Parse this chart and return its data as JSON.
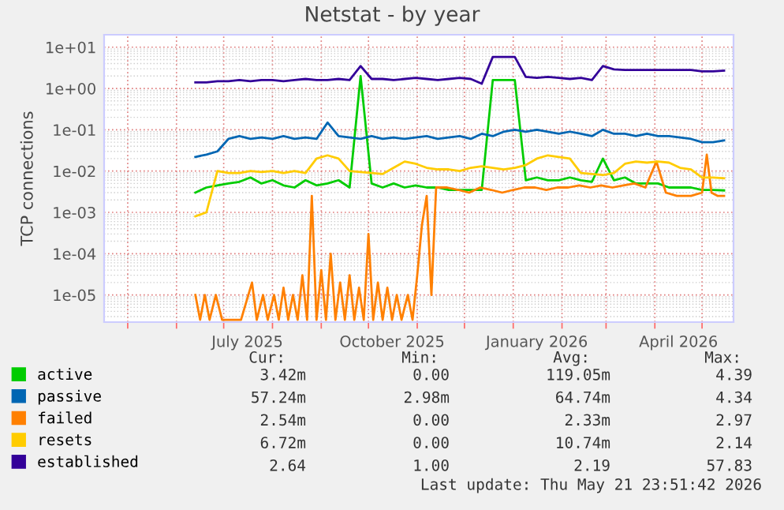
{
  "chart_data": {
    "type": "line",
    "title": "Netstat - by year",
    "ylabel": "TCP connections",
    "log": "y",
    "grid": true,
    "legend": "bottom",
    "xlim": [
      "2025-04-16",
      "2026-05-21"
    ],
    "xticks": [
      {
        "value": "2025-07-16",
        "label": "July 2025"
      },
      {
        "value": "2025-10-16",
        "label": "October 2025"
      },
      {
        "value": "2026-01-16",
        "label": "January 2026"
      },
      {
        "value": "2026-04-16",
        "label": "April 2026"
      }
    ],
    "ylim": [
      2.2e-06,
      20
    ],
    "yticks": [
      {
        "value": 1e-05,
        "label": "1e-05"
      },
      {
        "value": 0.0001,
        "label": "1e-04"
      },
      {
        "value": 0.001,
        "label": "1e-03"
      },
      {
        "value": 0.01,
        "label": "1e-02"
      },
      {
        "value": 0.1,
        "label": "1e-01"
      },
      {
        "value": 1,
        "label": "1e+00"
      },
      {
        "value": 10,
        "label": "1e+01"
      }
    ],
    "x": [
      "2025-06-13",
      "2025-06-20",
      "2025-06-27",
      "2025-07-04",
      "2025-07-11",
      "2025-07-18",
      "2025-07-25",
      "2025-08-01",
      "2025-08-08",
      "2025-08-15",
      "2025-08-22",
      "2025-08-29",
      "2025-09-05",
      "2025-09-12",
      "2025-09-19",
      "2025-09-26",
      "2025-10-03",
      "2025-10-10",
      "2025-10-17",
      "2025-10-24",
      "2025-10-31",
      "2025-11-07",
      "2025-11-14",
      "2025-11-21",
      "2025-11-28",
      "2025-12-05",
      "2025-12-12",
      "2025-12-19",
      "2025-12-26",
      "2026-01-02",
      "2026-01-09",
      "2026-01-16",
      "2026-01-23",
      "2026-01-30",
      "2026-02-06",
      "2026-02-13",
      "2026-02-20",
      "2026-02-27",
      "2026-03-06",
      "2026-03-13",
      "2026-03-20",
      "2026-03-27",
      "2026-04-03",
      "2026-04-10",
      "2026-04-17",
      "2026-04-24",
      "2026-05-01",
      "2026-05-08",
      "2026-05-15"
    ],
    "series": [
      {
        "name": "active",
        "color": "#00cc00",
        "values": [
          0.003,
          0.004,
          0.0045,
          0.005,
          0.0055,
          0.007,
          0.005,
          0.006,
          0.0045,
          0.004,
          0.006,
          0.0045,
          0.005,
          0.006,
          0.004,
          2.0,
          0.005,
          0.004,
          0.005,
          0.004,
          0.0045,
          0.004,
          0.004,
          0.0035,
          0.0035,
          0.0035,
          0.0035,
          1.6,
          1.6,
          1.6,
          0.006,
          0.007,
          0.006,
          0.006,
          0.007,
          0.006,
          0.0055,
          0.02,
          0.006,
          0.007,
          0.005,
          0.005,
          0.005,
          0.004,
          0.004,
          0.004,
          0.0035,
          0.0035,
          0.0034
        ]
      },
      {
        "name": "passive",
        "color": "#0066b3",
        "values": [
          0.022,
          0.025,
          0.03,
          0.06,
          0.07,
          0.06,
          0.065,
          0.06,
          0.07,
          0.06,
          0.065,
          0.06,
          0.15,
          0.07,
          0.065,
          0.06,
          0.07,
          0.06,
          0.065,
          0.06,
          0.065,
          0.07,
          0.06,
          0.065,
          0.07,
          0.06,
          0.08,
          0.07,
          0.09,
          0.1,
          0.09,
          0.1,
          0.09,
          0.08,
          0.09,
          0.08,
          0.07,
          0.1,
          0.08,
          0.08,
          0.07,
          0.08,
          0.07,
          0.07,
          0.065,
          0.06,
          0.05,
          0.05,
          0.055
        ]
      },
      {
        "name": "failed",
        "color": "#ff8000",
        "x": [
          "2025-06-13",
          "2025-06-16",
          "2025-06-19",
          "2025-06-22",
          "2025-06-26",
          "2025-06-30",
          "2025-07-05",
          "2025-07-12",
          "2025-07-19",
          "2025-07-22",
          "2025-07-26",
          "2025-07-29",
          "2025-08-02",
          "2025-08-05",
          "2025-08-08",
          "2025-08-11",
          "2025-08-14",
          "2025-08-17",
          "2025-08-20",
          "2025-08-23",
          "2025-08-26",
          "2025-08-29",
          "2025-09-01",
          "2025-09-04",
          "2025-09-07",
          "2025-09-10",
          "2025-09-13",
          "2025-09-16",
          "2025-09-19",
          "2025-09-22",
          "2025-09-25",
          "2025-09-28",
          "2025-10-01",
          "2025-10-04",
          "2025-10-07",
          "2025-10-10",
          "2025-10-13",
          "2025-10-16",
          "2025-10-19",
          "2025-10-22",
          "2025-10-26",
          "2025-10-29",
          "2025-11-01",
          "2025-11-04",
          "2025-11-07",
          "2025-11-10",
          "2025-11-13",
          "2025-11-20",
          "2025-11-27",
          "2025-12-04",
          "2025-12-11",
          "2025-12-18",
          "2025-12-25",
          "2026-01-01",
          "2026-01-08",
          "2026-01-15",
          "2026-01-22",
          "2026-01-29",
          "2026-02-05",
          "2026-02-12",
          "2026-02-19",
          "2026-02-26",
          "2026-03-05",
          "2026-03-12",
          "2026-03-19",
          "2026-03-26",
          "2026-04-02",
          "2026-04-08",
          "2026-04-15",
          "2026-04-24",
          "2026-05-01",
          "2026-05-04",
          "2026-05-07",
          "2026-05-11",
          "2026-05-15"
        ],
        "values": [
          1e-05,
          2.5e-06,
          1e-05,
          2.5e-06,
          1e-05,
          2.5e-06,
          2.5e-06,
          2.5e-06,
          2e-05,
          2.5e-06,
          1e-05,
          2.5e-06,
          1e-05,
          2.5e-06,
          1.5e-05,
          2.5e-06,
          1e-05,
          2.5e-06,
          3e-05,
          2.5e-06,
          0.0025,
          2.5e-06,
          4e-05,
          2.5e-06,
          0.0001,
          2.5e-06,
          2e-05,
          2.5e-06,
          3e-05,
          2.5e-06,
          1.5e-05,
          2.5e-06,
          0.0003,
          2.5e-06,
          2e-05,
          2.5e-06,
          1.5e-05,
          2.5e-06,
          1e-05,
          2.5e-06,
          1e-05,
          2.5e-06,
          3e-05,
          0.0005,
          0.0025,
          1e-05,
          0.004,
          0.004,
          0.0035,
          0.003,
          0.004,
          0.0035,
          0.003,
          0.0035,
          0.004,
          0.004,
          0.0035,
          0.004,
          0.004,
          0.0045,
          0.004,
          0.0045,
          0.004,
          0.0045,
          0.005,
          0.004,
          0.017,
          0.003,
          0.0025,
          0.0025,
          0.003,
          0.025,
          0.003,
          0.0025,
          0.0025
        ]
      },
      {
        "name": "resets",
        "color": "#ffcc00",
        "values": [
          0.0008,
          0.001,
          0.01,
          0.009,
          0.009,
          0.01,
          0.0095,
          0.01,
          0.009,
          0.01,
          0.009,
          0.02,
          0.024,
          0.02,
          0.01,
          0.0095,
          0.009,
          0.0085,
          0.012,
          0.017,
          0.015,
          0.012,
          0.011,
          0.011,
          0.01,
          0.012,
          0.013,
          0.012,
          0.011,
          0.012,
          0.014,
          0.02,
          0.024,
          0.022,
          0.02,
          0.009,
          0.0085,
          0.008,
          0.009,
          0.015,
          0.017,
          0.016,
          0.017,
          0.016,
          0.012,
          0.011,
          0.007,
          0.007,
          0.0067
        ]
      },
      {
        "name": "established",
        "color": "#330099",
        "values": [
          1.4,
          1.4,
          1.5,
          1.5,
          1.6,
          1.5,
          1.6,
          1.6,
          1.5,
          1.6,
          1.7,
          1.6,
          1.6,
          1.7,
          1.6,
          3.5,
          1.7,
          1.7,
          1.6,
          1.7,
          1.8,
          1.7,
          1.6,
          1.7,
          1.8,
          1.7,
          1.3,
          5.8,
          5.8,
          5.8,
          1.9,
          1.8,
          1.9,
          1.8,
          1.7,
          1.8,
          1.6,
          3.5,
          2.9,
          2.8,
          2.8,
          2.8,
          2.8,
          2.8,
          2.8,
          2.8,
          2.6,
          2.6,
          2.7
        ]
      }
    ],
    "annotations": [
      "Cur:",
      "Min:",
      "Avg:",
      "Max:",
      "3.42m",
      "0.00",
      "119.05m",
      "4.39",
      "57.24m",
      "2.98m",
      "64.74m",
      "4.34",
      "2.54m",
      "0.00",
      "2.33m",
      "2.97",
      "6.72m",
      "0.00",
      "10.74m",
      "2.14",
      "2.64",
      "1.00",
      "2.19",
      "57.83",
      "Last update: Thu May 21 23:51:42 2026"
    ]
  }
}
